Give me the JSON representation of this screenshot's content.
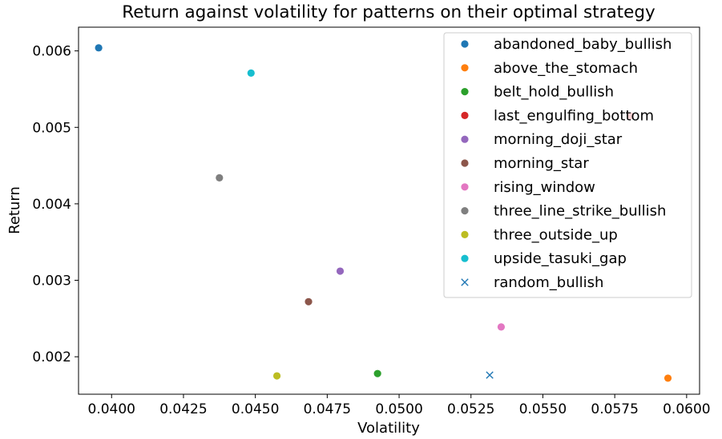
{
  "chart_data": {
    "type": "scatter",
    "title": "Return against volatility for patterns on their optimal strategy",
    "xlabel": "Volatility",
    "ylabel": "Return",
    "xlim": [
      0.03885,
      0.06045
    ],
    "ylim": [
      0.00151,
      0.00631
    ],
    "xticks": [
      0.04,
      0.0425,
      0.045,
      0.0475,
      0.05,
      0.0525,
      0.055,
      0.0575,
      0.06
    ],
    "xtick_labels": [
      "0.0400",
      "0.0425",
      "0.0450",
      "0.0475",
      "0.0500",
      "0.0525",
      "0.0550",
      "0.0575",
      "0.0600"
    ],
    "yticks": [
      0.002,
      0.003,
      0.004,
      0.005,
      0.006
    ],
    "ytick_labels": [
      "0.002",
      "0.003",
      "0.004",
      "0.005",
      "0.006"
    ],
    "grid": false,
    "legend_position": "top-right",
    "series": [
      {
        "name": "abandoned_baby_bullish",
        "color": "#1f77b4",
        "marker": "circle",
        "x": 0.03955,
        "y": 0.00604
      },
      {
        "name": "above_the_stomach",
        "color": "#ff7f0e",
        "marker": "circle",
        "x": 0.05935,
        "y": 0.00172
      },
      {
        "name": "belt_hold_bullish",
        "color": "#2ca02c",
        "marker": "circle",
        "x": 0.04925,
        "y": 0.00178
      },
      {
        "name": "last_engulfing_bottom",
        "color": "#d62728",
        "marker": "circle",
        "x": 0.05805,
        "y": 0.00515
      },
      {
        "name": "morning_doji_star",
        "color": "#9467bd",
        "marker": "circle",
        "x": 0.04795,
        "y": 0.00312
      },
      {
        "name": "morning_star",
        "color": "#8c564b",
        "marker": "circle",
        "x": 0.04685,
        "y": 0.00272
      },
      {
        "name": "rising_window",
        "color": "#e377c2",
        "marker": "circle",
        "x": 0.05355,
        "y": 0.00239
      },
      {
        "name": "three_line_strike_bullish",
        "color": "#7f7f7f",
        "marker": "circle",
        "x": 0.04375,
        "y": 0.00434
      },
      {
        "name": "three_outside_up",
        "color": "#bcbd22",
        "marker": "circle",
        "x": 0.04575,
        "y": 0.00175
      },
      {
        "name": "upside_tasuki_gap",
        "color": "#17becf",
        "marker": "circle",
        "x": 0.04485,
        "y": 0.00571
      },
      {
        "name": "random_bullish",
        "color": "#1f77b4",
        "marker": "x",
        "x": 0.05315,
        "y": 0.00176
      }
    ]
  }
}
